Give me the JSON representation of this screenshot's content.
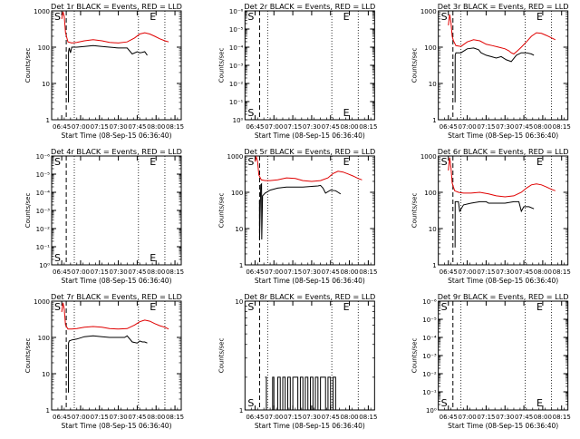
{
  "figure": {
    "x_ticks": [
      "06:45",
      "07:00",
      "07:15",
      "07:30",
      "07:45",
      "08:00",
      "08:15"
    ],
    "xlabel": "Start Time (08-Sep-15 06:36:40)",
    "ylabel": "Counts/sec",
    "marker_s": "S",
    "marker_e": "E",
    "colors": {
      "events": "#000000",
      "lld": "#e00000",
      "axes": "#000000"
    }
  },
  "chart_data": [
    {
      "title": "Det 1r BLACK = Events, RED = LLD",
      "type": "line",
      "scale": "log",
      "ylim": [
        1,
        1000
      ],
      "y_ticks": [
        "1",
        "10",
        "100",
        "1000"
      ],
      "series": [
        {
          "name": "LLD",
          "x": [
            0,
            1,
            2,
            3,
            5,
            8,
            12,
            18,
            25,
            32,
            38,
            45,
            52,
            58,
            62,
            66,
            70,
            74,
            78,
            82,
            85
          ],
          "y": [
            600,
            950,
            700,
            250,
            140,
            130,
            135,
            150,
            160,
            150,
            135,
            130,
            140,
            180,
            230,
            250,
            230,
            200,
            170,
            150,
            140
          ]
        },
        {
          "name": "Events",
          "x": [
            5.3,
            5.4,
            6,
            7,
            8,
            12,
            18,
            25,
            32,
            38,
            45,
            48,
            50,
            52,
            56,
            60,
            62,
            64,
            66,
            68
          ],
          "y": [
            3,
            75,
            95,
            70,
            100,
            100,
            105,
            110,
            105,
            100,
            95,
            95,
            95,
            95,
            65,
            75,
            70,
            72,
            75,
            60
          ]
        }
      ]
    },
    {
      "title": "Det 2r BLACK = Events, RED = LLD",
      "type": "line",
      "scale": "log",
      "ylim": [
        1,
        1e-06
      ],
      "y_ticks": [
        "10⁰",
        "10⁻¹",
        "10⁻²",
        "10⁻³",
        "10⁻⁴",
        "10⁻⁵",
        "10⁻⁶"
      ],
      "series": []
    },
    {
      "title": "Det 3r BLACK = Events, RED = LLD",
      "type": "line",
      "scale": "log",
      "ylim": [
        1,
        1000
      ],
      "y_ticks": [
        "1",
        "10",
        "100",
        "1000"
      ],
      "series": [
        {
          "name": "LLD",
          "x": [
            0,
            1,
            2,
            3,
            4,
            6,
            10,
            15,
            20,
            25,
            30,
            35,
            40,
            45,
            48,
            50,
            52,
            55,
            58,
            62,
            66,
            70,
            74,
            78,
            82,
            85
          ],
          "y": [
            400,
            800,
            500,
            200,
            150,
            110,
            105,
            140,
            160,
            150,
            120,
            110,
            100,
            90,
            80,
            70,
            65,
            80,
            100,
            140,
            200,
            250,
            240,
            210,
            180,
            160
          ]
        },
        {
          "name": "Events",
          "x": [
            5.3,
            5.4,
            6,
            10,
            15,
            20,
            24,
            26,
            30,
            34,
            38,
            42,
            46,
            50,
            54,
            58,
            62,
            66,
            68
          ],
          "y": [
            3,
            60,
            70,
            70,
            90,
            95,
            85,
            70,
            60,
            55,
            50,
            55,
            45,
            40,
            60,
            70,
            70,
            65,
            60
          ]
        }
      ]
    },
    {
      "title": "Det 4r BLACK = Events, RED = LLD",
      "type": "line",
      "scale": "log",
      "ylim": [
        1,
        1e-06
      ],
      "y_ticks": [
        "10⁰",
        "10⁻¹",
        "10⁻²",
        "10⁻³",
        "10⁻⁴",
        "10⁻⁵",
        "10⁻⁶"
      ],
      "series": []
    },
    {
      "title": "Det 5r BLACK = Events, RED = LLD",
      "type": "line",
      "scale": "log",
      "ylim": [
        1,
        1000
      ],
      "y_ticks": [
        "1",
        "10",
        "100",
        "1000"
      ],
      "series": [
        {
          "name": "LLD",
          "x": [
            0,
            1,
            2,
            3,
            5,
            8,
            12,
            18,
            25,
            32,
            38,
            45,
            52,
            58,
            62,
            66,
            70,
            74,
            78,
            82,
            85
          ],
          "y": [
            700,
            950,
            700,
            300,
            220,
            210,
            210,
            220,
            250,
            240,
            210,
            200,
            210,
            250,
            330,
            380,
            360,
            320,
            280,
            240,
            220
          ]
        },
        {
          "name": "Events",
          "x": [
            3.5,
            3.6,
            4.5,
            5.2,
            5.3,
            6,
            8,
            12,
            18,
            25,
            32,
            38,
            45,
            50,
            52,
            54,
            56,
            60,
            64,
            66,
            68
          ],
          "y": [
            60,
            5,
            160,
            170,
            5,
            80,
            95,
            115,
            130,
            140,
            140,
            140,
            145,
            150,
            155,
            130,
            95,
            115,
            110,
            100,
            90
          ]
        }
      ]
    },
    {
      "title": "Det 6r BLACK = Events, RED = LLD",
      "type": "line",
      "scale": "log",
      "ylim": [
        1,
        1000
      ],
      "y_ticks": [
        "1",
        "10",
        "100",
        "1000"
      ],
      "series": [
        {
          "name": "LLD",
          "x": [
            0,
            1,
            2,
            3,
            5,
            8,
            12,
            18,
            25,
            32,
            38,
            45,
            52,
            58,
            62,
            66,
            70,
            74,
            78,
            82,
            85
          ],
          "y": [
            400,
            900,
            500,
            180,
            110,
            100,
            95,
            95,
            100,
            90,
            80,
            75,
            80,
            100,
            130,
            160,
            170,
            160,
            140,
            120,
            110
          ]
        },
        {
          "name": "Events",
          "x": [
            5.3,
            5.4,
            8,
            9,
            12,
            18,
            25,
            30,
            32,
            38,
            45,
            52,
            56,
            58,
            60,
            64,
            68
          ],
          "y": [
            3,
            55,
            55,
            30,
            45,
            50,
            55,
            55,
            50,
            50,
            50,
            55,
            55,
            30,
            40,
            40,
            35
          ]
        }
      ]
    },
    {
      "title": "Det 7r BLACK = Events, RED = LLD",
      "type": "line",
      "scale": "log",
      "ylim": [
        1,
        1000
      ],
      "y_ticks": [
        "1",
        "10",
        "100",
        "1000"
      ],
      "series": [
        {
          "name": "LLD",
          "x": [
            0,
            1,
            2,
            3,
            5,
            8,
            12,
            18,
            25,
            32,
            38,
            45,
            52,
            58,
            62,
            66,
            70,
            74,
            78,
            82,
            85
          ],
          "y": [
            500,
            900,
            600,
            220,
            170,
            170,
            175,
            190,
            200,
            190,
            175,
            170,
            175,
            220,
            270,
            300,
            280,
            240,
            210,
            190,
            170
          ]
        },
        {
          "name": "Events",
          "x": [
            5.3,
            5.4,
            6,
            8,
            12,
            18,
            25,
            32,
            38,
            45,
            50,
            52,
            56,
            60,
            62,
            64,
            66,
            68
          ],
          "y": [
            3,
            70,
            80,
            85,
            90,
            105,
            110,
            105,
            100,
            100,
            100,
            110,
            75,
            70,
            80,
            75,
            75,
            70
          ]
        }
      ]
    },
    {
      "title": "Det 8r BLACK = Events, RED = LLD",
      "type": "line",
      "scale": "log",
      "ylim": [
        1,
        10
      ],
      "y_ticks": [
        "1",
        "10"
      ],
      "series": [
        {
          "name": "Events",
          "x": [
            8,
            9,
            14,
            15,
            18,
            19,
            20,
            22,
            24,
            26,
            28,
            30,
            32,
            34,
            36,
            38,
            40,
            42,
            44,
            46,
            48,
            50,
            52,
            54,
            56,
            58,
            60,
            62,
            64,
            68
          ],
          "y": [
            2,
            1,
            2,
            1,
            2,
            2,
            1,
            2,
            1,
            2,
            1,
            2,
            2,
            1,
            2,
            1,
            2,
            1,
            2,
            1,
            2,
            1,
            2,
            2,
            1,
            2,
            1,
            2,
            1,
            1
          ]
        }
      ]
    },
    {
      "title": "Det 9r BLACK = Events, RED = LLD",
      "type": "line",
      "scale": "log",
      "ylim": [
        1,
        1e-06
      ],
      "y_ticks": [
        "10⁰",
        "10⁻¹",
        "10⁻²",
        "10⁻³",
        "10⁻⁴",
        "10⁻⁵",
        "10⁻⁶"
      ],
      "series": []
    }
  ]
}
